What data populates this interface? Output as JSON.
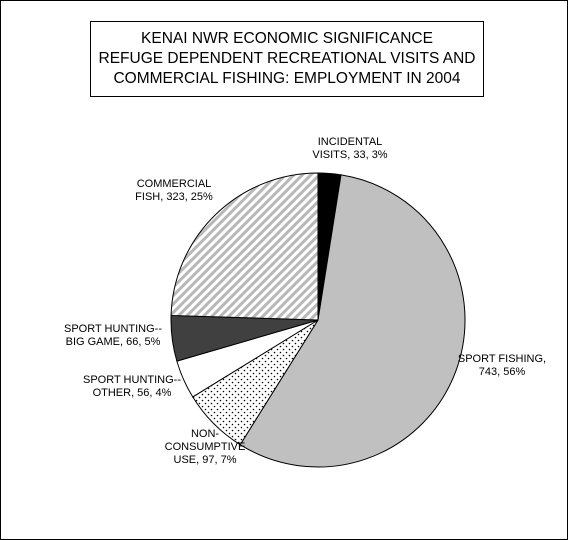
{
  "chart_data": {
    "type": "pie",
    "title_lines": [
      "KENAI NWR ECONOMIC SIGNIFICANCE",
      "REFUGE DEPENDENT RECREATIONAL VISITS AND",
      "COMMERCIAL FISHING: EMPLOYMENT IN 2004"
    ],
    "slices": [
      {
        "name": "INCIDENTAL VISITS",
        "value": 33,
        "percent": 3,
        "label_lines": [
          "INCIDENTAL",
          "VISITS, 33, 3%"
        ],
        "fill": "solid",
        "color": "#000000"
      },
      {
        "name": "SPORT FISHING",
        "value": 743,
        "percent": 56,
        "label_lines": [
          "SPORT FISHING,",
          "743, 56%"
        ],
        "fill": "solid",
        "color": "#c0c0c0"
      },
      {
        "name": "NON-CONSUMPTIVE USE",
        "value": 97,
        "percent": 7,
        "label_lines": [
          "NON-",
          "CONSUMPTIVE",
          "USE, 97, 7%"
        ],
        "fill": "dots",
        "color": "#000000"
      },
      {
        "name": "SPORT HUNTING--OTHER",
        "value": 56,
        "percent": 4,
        "label_lines": [
          "SPORT HUNTING--",
          "OTHER, 56, 4%"
        ],
        "fill": "solid",
        "color": "#ffffff"
      },
      {
        "name": "SPORT HUNTING--BIG GAME",
        "value": 66,
        "percent": 5,
        "label_lines": [
          "SPORT HUNTING--",
          "BIG GAME, 66, 5%"
        ],
        "fill": "solid",
        "color": "#404040"
      },
      {
        "name": "COMMERCIAL FISH",
        "value": 323,
        "percent": 25,
        "label_lines": [
          "COMMERCIAL",
          "FISH, 323, 25%"
        ],
        "fill": "stripes",
        "color": "#b8b8b8"
      }
    ]
  }
}
